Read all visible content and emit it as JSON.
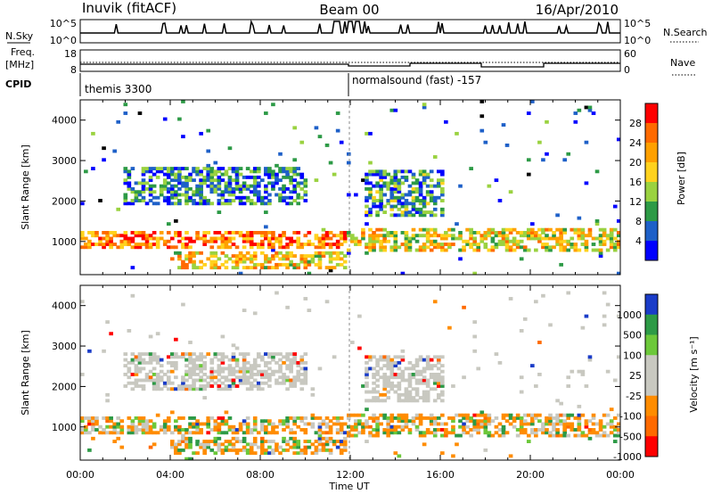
{
  "header": {
    "station": "Inuvik (fitACF)",
    "beam": "Beam 00",
    "date": "16/Apr/2010"
  },
  "top_panels": {
    "nsky_label": "N.Sky",
    "nsky_ticks": [
      "10^5",
      "10^0"
    ],
    "nsearch_label": "N.Search",
    "freq_label_1": "Freq.",
    "freq_label_2": "[MHz]",
    "freq_ticks": [
      "18",
      "8"
    ],
    "nave_label": "Nave",
    "nave_ticks": [
      "60",
      "0"
    ],
    "cpid_label": "CPID",
    "cpid_1": "themis 3300",
    "cpid_2": "normalsound (fast) -157"
  },
  "chart_data": [
    {
      "type": "heatmap",
      "quantity": "Power",
      "colorbar_label": "Power [dB]",
      "colorbar_ticks": [
        "28",
        "24",
        "20",
        "16",
        "12",
        "8",
        "4"
      ],
      "colorbar_colors": [
        "#ff0000",
        "#ff6a00",
        "#ffa000",
        "#ffd21e",
        "#9ad240",
        "#2d9a46",
        "#1e60c8",
        "#0000ff"
      ],
      "ylabel": "Slant Range [km]",
      "yticks": [
        "4000",
        "3000",
        "2000",
        "1000"
      ],
      "ylim": [
        180,
        4500
      ],
      "xlim": [
        0,
        24
      ],
      "bands": [
        {
          "t0": 0.0,
          "t1": 11.8,
          "r0": 800,
          "r1": 1250,
          "level": 0.75
        },
        {
          "t0": 11.8,
          "t1": 24.0,
          "r0": 750,
          "r1": 1300,
          "level": 0.55
        },
        {
          "t0": 12.5,
          "t1": 16.0,
          "r0": 1600,
          "r1": 2700,
          "level": 0.3
        },
        {
          "t0": 1.8,
          "t1": 10.0,
          "r0": 1900,
          "r1": 2800,
          "level": 0.25
        },
        {
          "t0": 4.0,
          "t1": 11.8,
          "r0": 300,
          "r1": 750,
          "level": 0.6
        }
      ]
    },
    {
      "type": "heatmap",
      "quantity": "Velocity",
      "colorbar_label": "Velocity [m s⁻¹]",
      "colorbar_ticks": [
        "1000",
        "500",
        "100",
        "25",
        "-25",
        "-100",
        "-500",
        "-1000"
      ],
      "colorbar_colors": [
        "#1a3cc8",
        "#2d9a46",
        "#6cc83a",
        "#c8c8c0",
        "#c8c8c0",
        "#ff8c00",
        "#ff6a00",
        "#ff0000"
      ],
      "ylabel": "Slant Range [km]",
      "yticks": [
        "4000",
        "3000",
        "2000",
        "1000"
      ],
      "ylim": [
        180,
        4500
      ],
      "xlim": [
        0,
        24
      ],
      "xlabel": "Time UT",
      "xticks": [
        "00:00",
        "04:00",
        "08:00",
        "12:00",
        "16:00",
        "20:00",
        "00:00"
      ]
    }
  ]
}
